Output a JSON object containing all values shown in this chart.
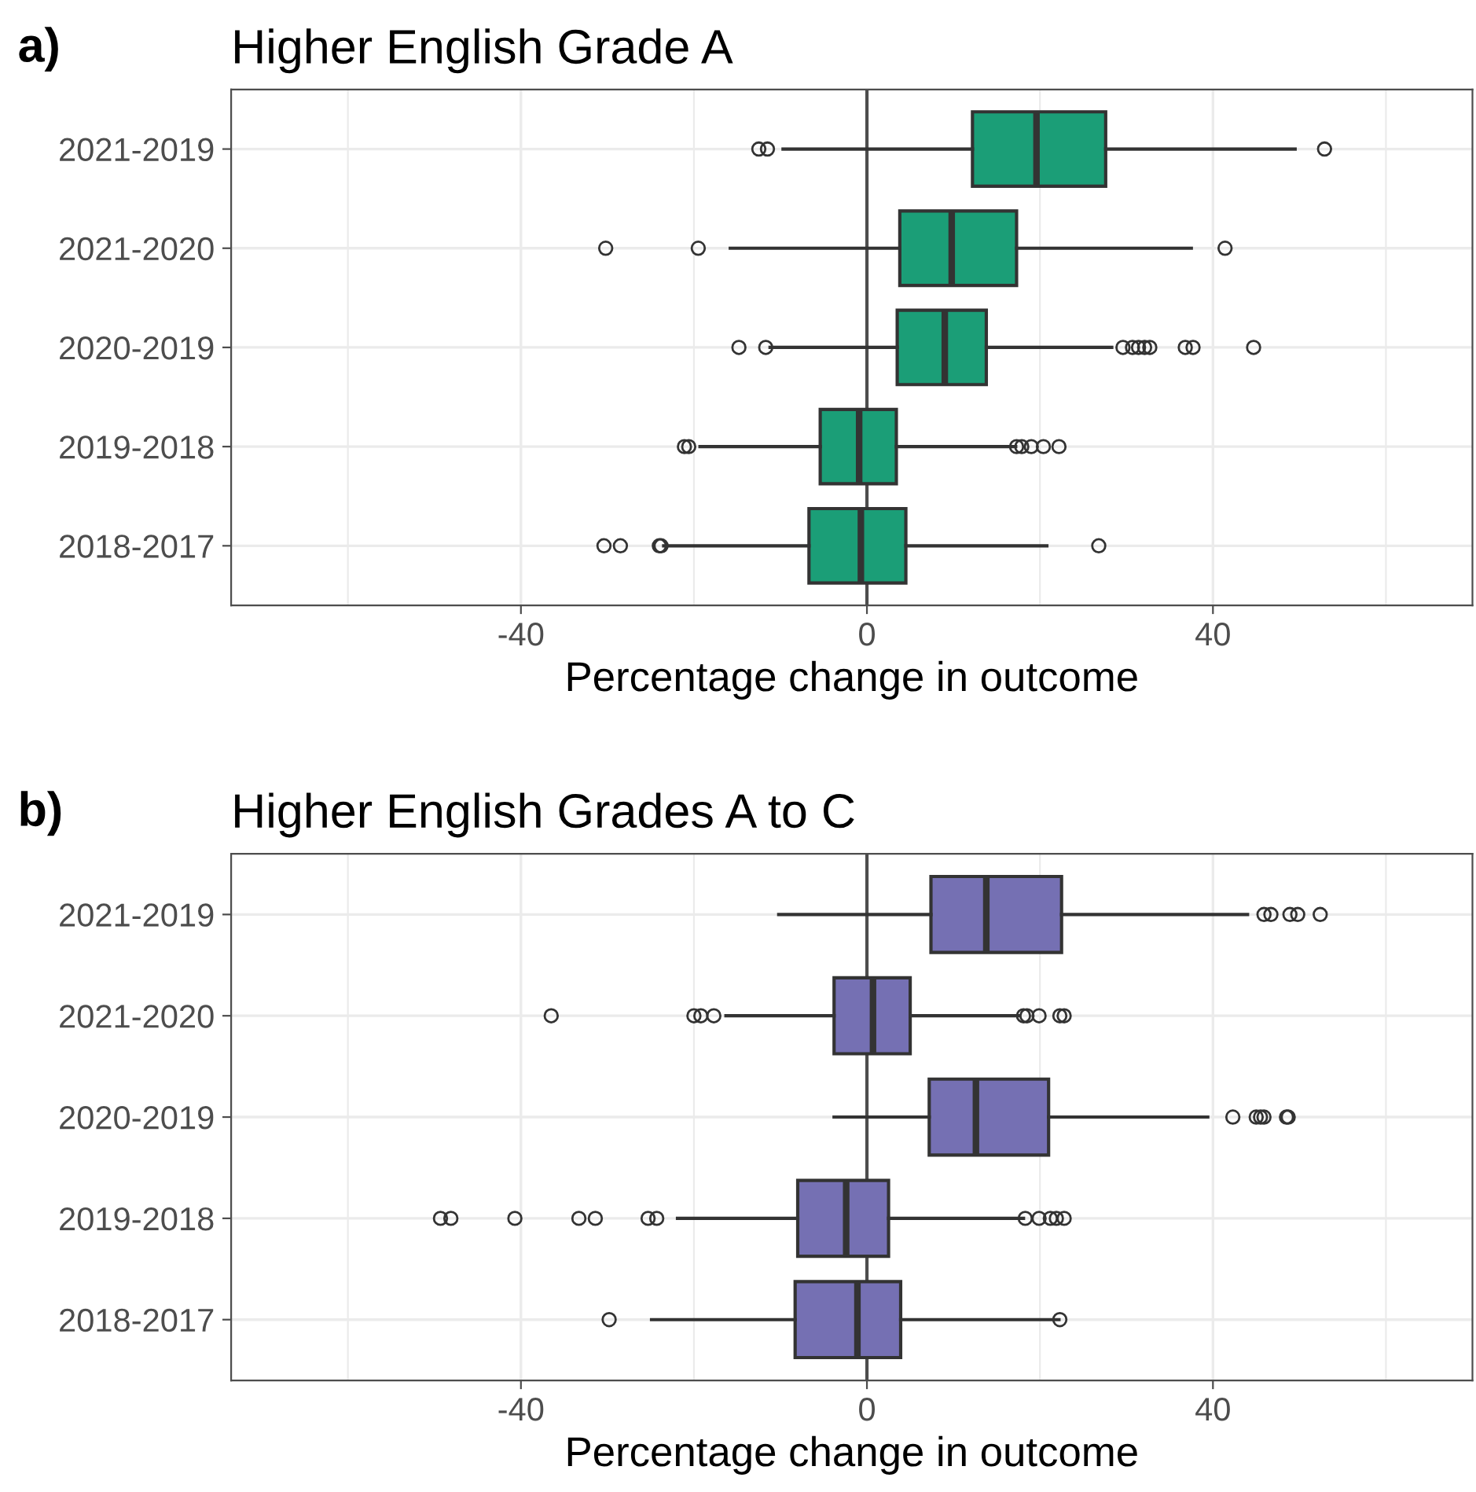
{
  "chart_data": [
    {
      "type": "box",
      "title": "Higher English Grade A",
      "xlabel": "Percentage change in outcome",
      "orientation": "horizontal",
      "annotations": [
        "a)"
      ],
      "categories": [
        "2021-2019",
        "2021-2020",
        "2020-2019",
        "2019-2018",
        "2018-2017"
      ],
      "series": [
        {
          "color": "#1b9e77",
          "boxes": [
            {
              "low": -9.7,
              "q1": 12.2,
              "median": 19.6,
              "q3": 27.6,
              "high": 49.5,
              "outliers": [
                -12.5,
                -11.5,
                52.9
              ]
            },
            {
              "low": -15.8,
              "q1": 3.8,
              "median": 9.8,
              "q3": 17.3,
              "high": 37.5,
              "outliers": [
                -30.2,
                -19.5,
                41.4
              ]
            },
            {
              "low": -11.2,
              "q1": 3.5,
              "median": 9.0,
              "q3": 13.8,
              "high": 28.3,
              "outliers": [
                -14.8,
                -11.7,
                29.6,
                30.7,
                31.4,
                32.1,
                32.7,
                36.8,
                37.7,
                44.7
              ]
            },
            {
              "low": -19.3,
              "q1": -5.4,
              "median": -0.9,
              "q3": 3.4,
              "high": 17.2,
              "outliers": [
                -21.1,
                -20.6,
                17.3,
                17.9,
                19.0,
                20.4,
                22.2
              ]
            },
            {
              "low": -23.5,
              "q1": -6.7,
              "median": -0.7,
              "q3": 4.5,
              "high": 20.8,
              "outliers": [
                -30.4,
                -28.5,
                -24.0,
                -23.8,
                26.8
              ]
            }
          ]
        }
      ],
      "xlim": [
        -73.5,
        70
      ],
      "xticks": [
        {
          "value": -60,
          "label": null
        },
        -40,
        {
          "value": -20,
          "label": null
        },
        0,
        {
          "value": 20,
          "label": null
        },
        40,
        {
          "value": 60,
          "label": null
        }
      ],
      "grid": true,
      "ref_lines": [
        {
          "axis": "x",
          "value": 0,
          "color": "#4d4d4d"
        }
      ]
    },
    {
      "type": "box",
      "title": "Higher English Grades A to C",
      "xlabel": "Percentage change in outcome",
      "orientation": "horizontal",
      "annotations": [
        "b)"
      ],
      "categories": [
        "2021-2019",
        "2021-2020",
        "2020-2019",
        "2019-2018",
        "2018-2017"
      ],
      "series": [
        {
          "color": "#7570b3",
          "boxes": [
            {
              "low": -10.2,
              "q1": 7.4,
              "median": 13.8,
              "q3": 22.5,
              "high": 44.0,
              "outliers": [
                45.9,
                46.7,
                48.9,
                49.8,
                52.4
              ]
            },
            {
              "low": -16.3,
              "q1": -3.8,
              "median": 0.7,
              "q3": 5.0,
              "high": 17.6,
              "outliers": [
                -36.5,
                -20.0,
                -19.2,
                -17.7,
                18.1,
                18.5,
                19.9,
                22.3,
                22.8
              ]
            },
            {
              "low": -3.8,
              "q1": 7.2,
              "median": 12.6,
              "q3": 21.0,
              "high": 39.4,
              "outliers": [
                42.3,
                45.0,
                45.5,
                45.9,
                48.5,
                48.7
              ]
            },
            {
              "low": -21.9,
              "q1": -8.0,
              "median": -2.4,
              "q3": 2.5,
              "high": 18.1,
              "outliers": [
                -49.3,
                -48.1,
                -40.7,
                -33.3,
                -31.4,
                -25.3,
                -24.3,
                18.3,
                19.9,
                21.2,
                21.9,
                22.8
              ]
            },
            {
              "low": -24.9,
              "q1": -8.3,
              "median": -1.1,
              "q3": 3.9,
              "high": 22.2,
              "outliers": [
                -29.8,
                22.3
              ]
            }
          ]
        }
      ],
      "xlim": [
        -73.5,
        70
      ],
      "xticks": [
        {
          "value": -60,
          "label": null
        },
        -40,
        {
          "value": -20,
          "label": null
        },
        0,
        {
          "value": 20,
          "label": null
        },
        40,
        {
          "value": 60,
          "label": null
        }
      ],
      "grid": true,
      "ref_lines": [
        {
          "axis": "x",
          "value": 0,
          "color": "#4d4d4d"
        }
      ]
    }
  ]
}
